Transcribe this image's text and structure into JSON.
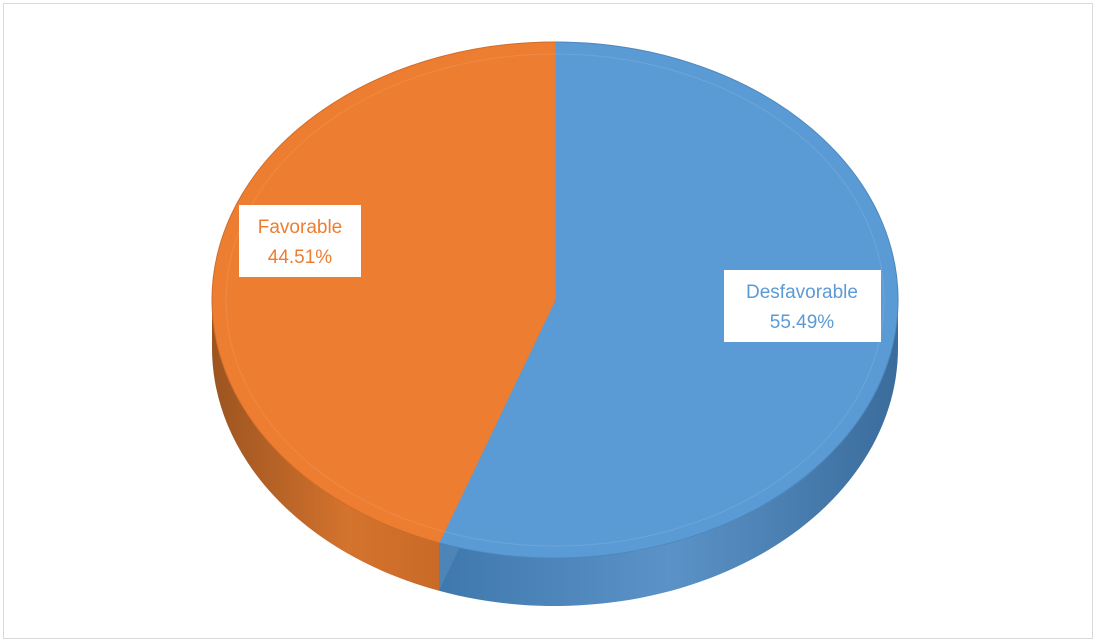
{
  "chart_data": {
    "type": "pie",
    "style": "3d",
    "categories": [
      "Desfavorable",
      "Favorable"
    ],
    "values": [
      55.49,
      44.51
    ],
    "labels": [
      {
        "name": "Desfavorable",
        "value": "55.49%"
      },
      {
        "name": "Favorable",
        "value": "44.51%"
      }
    ],
    "colors": [
      "#5b9bd5",
      "#ed7d31"
    ],
    "legend": "none"
  }
}
